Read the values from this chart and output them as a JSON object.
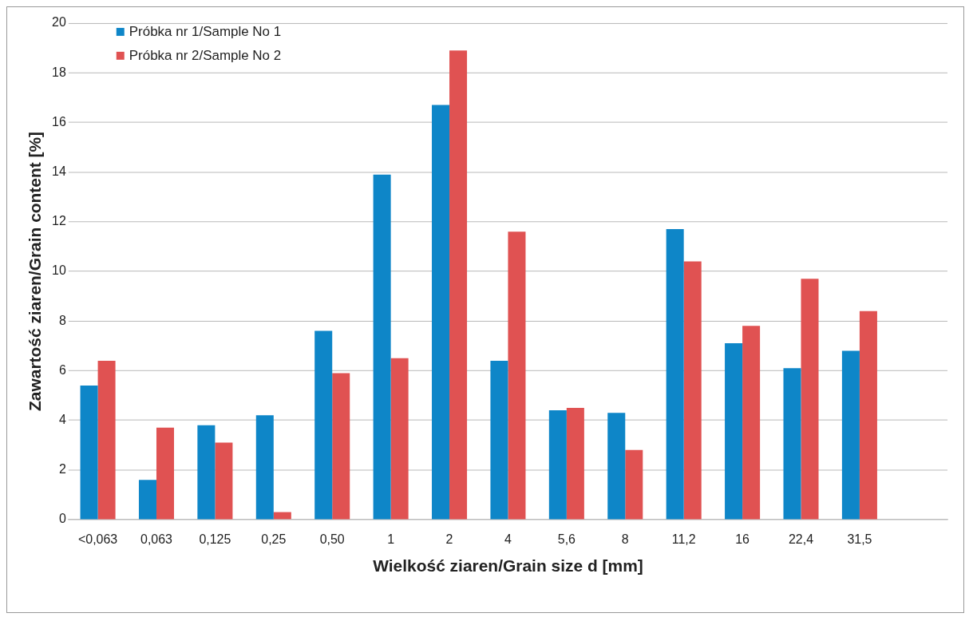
{
  "chart_data": {
    "type": "bar",
    "xlabel": "Wielkość ziaren/Grain size d [mm]",
    "ylabel": "Zawartość ziaren/Grain content [%]",
    "categories": [
      "<0,063",
      "0,063",
      "0,125",
      "0,25",
      "0,50",
      "1",
      "2",
      "4",
      "5,6",
      "8",
      "11,2",
      "16",
      "22,4",
      "31,5",
      null
    ],
    "series": [
      {
        "name": "Próbka nr 1/Sample No 1",
        "color": "#0e86c8",
        "values": [
          5.4,
          1.6,
          3.8,
          4.2,
          7.6,
          13.9,
          16.7,
          6.4,
          4.4,
          4.3,
          11.7,
          7.1,
          6.1,
          6.8,
          null
        ]
      },
      {
        "name": "Próbka nr 2/Sample No 2",
        "color": "#e05252",
        "values": [
          6.4,
          3.7,
          3.1,
          0.3,
          5.9,
          6.5,
          18.9,
          11.6,
          4.5,
          2.8,
          10.4,
          7.8,
          9.7,
          8.4,
          null
        ]
      }
    ],
    "ylim": [
      0,
      20
    ],
    "yticks": [
      0,
      2,
      4,
      6,
      8,
      10,
      12,
      14,
      16,
      18,
      20
    ],
    "grid": "y",
    "legend": "top left"
  }
}
